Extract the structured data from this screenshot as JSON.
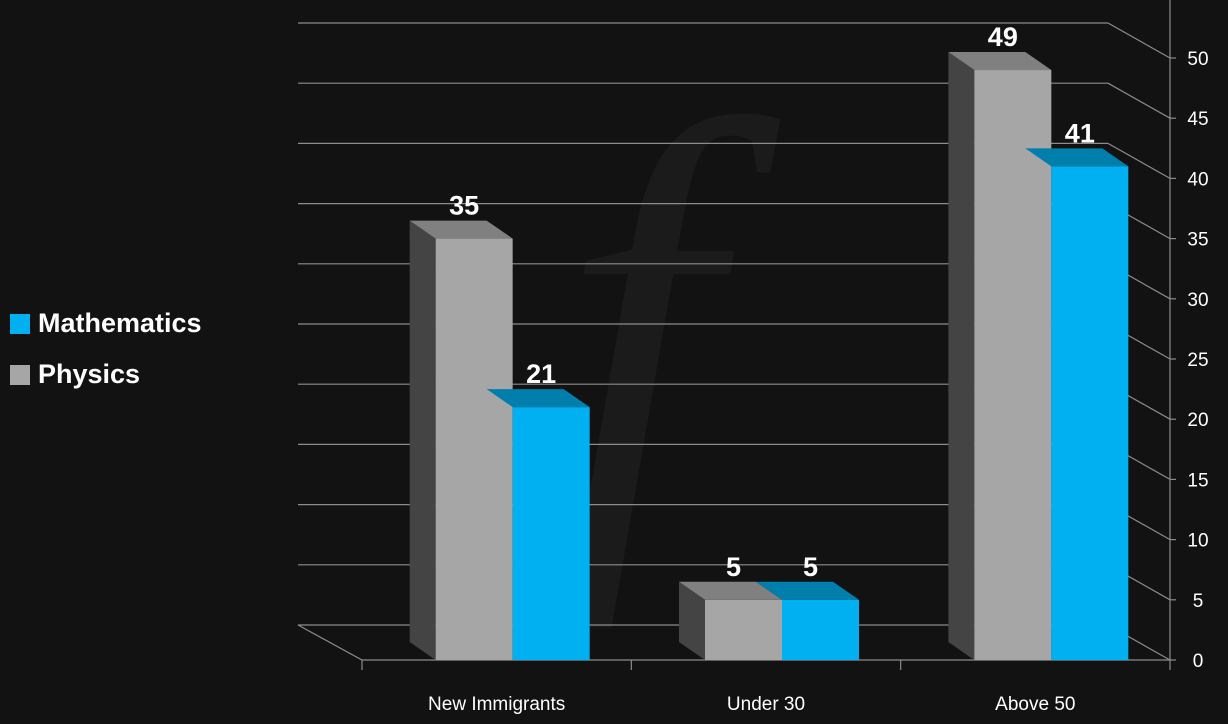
{
  "chart_data": {
    "type": "bar",
    "categories": [
      "New Immigrants",
      "Under 30",
      "Above 50"
    ],
    "series": [
      {
        "name": "Physics",
        "values": [
          35,
          5,
          49
        ],
        "color": "#a6a6a6"
      },
      {
        "name": "Mathematics",
        "values": [
          21,
          5,
          41
        ],
        "color": "#00b0f0"
      }
    ],
    "y_ticks": [
      "0",
      "5",
      "10",
      "15",
      "20",
      "25",
      "30",
      "35",
      "40",
      "45",
      "50"
    ],
    "ylim": [
      0,
      55
    ],
    "y_axis_side": "right",
    "grid": true,
    "legend_position": "left",
    "three_d": true,
    "title": "",
    "xlabel": "",
    "ylabel": ""
  },
  "legend": [
    {
      "label": "Mathematics",
      "color": "#00b0f0"
    },
    {
      "label": "Physics",
      "color": "#a6a6a6"
    }
  ],
  "watermark_glyph": "f",
  "colors": {
    "background": "#121212",
    "grid": "#8c8c8c",
    "axis_text": "#ffffff"
  }
}
